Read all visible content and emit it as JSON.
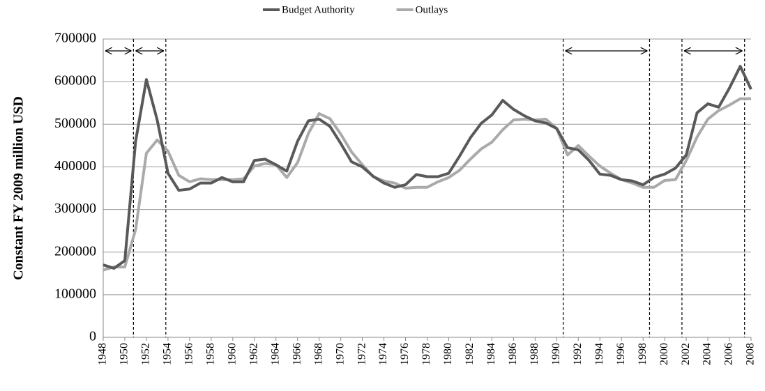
{
  "chart_data": {
    "type": "line",
    "y_label": "Constant FY 2009 million  USD",
    "x": [
      1948,
      1949,
      1950,
      1951,
      1952,
      1953,
      1954,
      1955,
      1956,
      1957,
      1958,
      1959,
      1960,
      1961,
      1962,
      1963,
      1964,
      1965,
      1966,
      1967,
      1968,
      1969,
      1970,
      1971,
      1972,
      1973,
      1974,
      1975,
      1976,
      1977,
      1978,
      1979,
      1980,
      1981,
      1982,
      1983,
      1984,
      1985,
      1986,
      1987,
      1988,
      1989,
      1990,
      1991,
      1992,
      1993,
      1994,
      1995,
      1996,
      1997,
      1998,
      1999,
      2000,
      2001,
      2002,
      2003,
      2004,
      2005,
      2006,
      2007,
      2008
    ],
    "series": [
      {
        "name": "Budget Authority",
        "color": "#595959",
        "values": [
          170000,
          162000,
          180000,
          460000,
          605000,
          510000,
          385000,
          345000,
          348000,
          362000,
          362000,
          375000,
          365000,
          365000,
          415000,
          418000,
          405000,
          390000,
          460000,
          508000,
          512000,
          495000,
          455000,
          412000,
          400000,
          378000,
          362000,
          352000,
          358000,
          382000,
          377000,
          377000,
          385000,
          425000,
          468000,
          502000,
          522000,
          556000,
          535000,
          520000,
          508000,
          503000,
          490000,
          445000,
          440000,
          415000,
          383000,
          380000,
          370000,
          367000,
          358000,
          375000,
          383000,
          397000,
          428000,
          527000,
          548000,
          540000,
          585000,
          636000,
          582000
        ]
      },
      {
        "name": "Outlays",
        "color": "#aaaaaa",
        "values": [
          158000,
          165000,
          165000,
          253000,
          432000,
          463000,
          437000,
          380000,
          365000,
          372000,
          370000,
          370000,
          370000,
          372000,
          402000,
          408000,
          405000,
          375000,
          410000,
          478000,
          525000,
          513000,
          477000,
          435000,
          405000,
          377000,
          367000,
          362000,
          350000,
          352000,
          352000,
          365000,
          375000,
          392000,
          418000,
          442000,
          458000,
          487000,
          510000,
          512000,
          510000,
          512000,
          490000,
          428000,
          450000,
          425000,
          402000,
          385000,
          370000,
          362000,
          352000,
          352000,
          368000,
          370000,
          415000,
          470000,
          512000,
          532000,
          545000,
          560000,
          560000
        ]
      }
    ],
    "xlim": [
      1948,
      2008
    ],
    "xticks": [
      1948,
      1950,
      1952,
      1954,
      1956,
      1958,
      1960,
      1962,
      1964,
      1966,
      1968,
      1970,
      1972,
      1974,
      1976,
      1978,
      1980,
      1982,
      1984,
      1986,
      1988,
      1990,
      1992,
      1994,
      1996,
      1998,
      2000,
      2002,
      2004,
      2006,
      2008
    ],
    "ylim": [
      0,
      700000
    ],
    "yticks": [
      0,
      100000,
      200000,
      300000,
      400000,
      500000,
      600000,
      700000
    ],
    "grid": true,
    "legend": "top",
    "vlines": [
      1950.8,
      1953.8,
      1990.6,
      1998.6,
      2001.6,
      2007.4
    ],
    "arrows": [
      [
        1948,
        1950.8
      ],
      [
        1950.8,
        1953.8
      ],
      [
        1990.6,
        1998.6
      ],
      [
        2001.6,
        2007.4
      ]
    ]
  }
}
